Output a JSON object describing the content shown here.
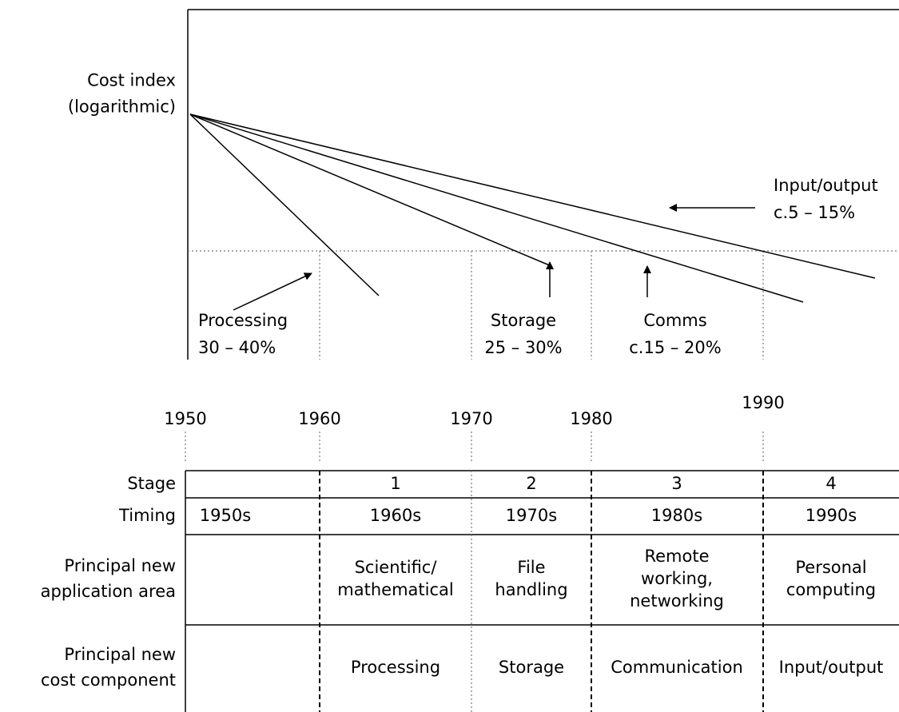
{
  "axis_label": [
    "Cost index",
    "(logarithmic)"
  ],
  "annotations": [
    {
      "lines": [
        "Processing",
        "30 – 40%"
      ]
    },
    {
      "lines": [
        "Storage",
        "25 – 30%"
      ]
    },
    {
      "lines": [
        "Comms",
        "c.15 – 20%"
      ]
    },
    {
      "lines": [
        "Input/output",
        "c.5 – 15%"
      ]
    }
  ],
  "decades": [
    "1950",
    "1960",
    "1970",
    "1980",
    "1990"
  ],
  "table": {
    "rows": [
      {
        "label": [
          "Stage"
        ],
        "cells": [
          null,
          [
            "1"
          ],
          [
            "2"
          ],
          [
            "3"
          ],
          [
            "4"
          ]
        ]
      },
      {
        "label": [
          "Timing"
        ],
        "cells": [
          [
            "1950s"
          ],
          [
            "1960s"
          ],
          [
            "1970s"
          ],
          [
            "1980s"
          ],
          [
            "1990s"
          ]
        ]
      },
      {
        "label": [
          "Principal new",
          "application area"
        ],
        "cells": [
          null,
          [
            "Scientific/",
            "mathematical"
          ],
          [
            "File",
            "handling"
          ],
          [
            "Remote",
            "working,",
            "networking"
          ],
          [
            "Personal",
            "computing"
          ]
        ]
      },
      {
        "label": [
          "Principal new",
          "cost component"
        ],
        "cells": [
          null,
          [
            "Processing"
          ],
          [
            "Storage"
          ],
          [
            "Communication"
          ],
          [
            "Input/output"
          ]
        ]
      }
    ]
  }
}
